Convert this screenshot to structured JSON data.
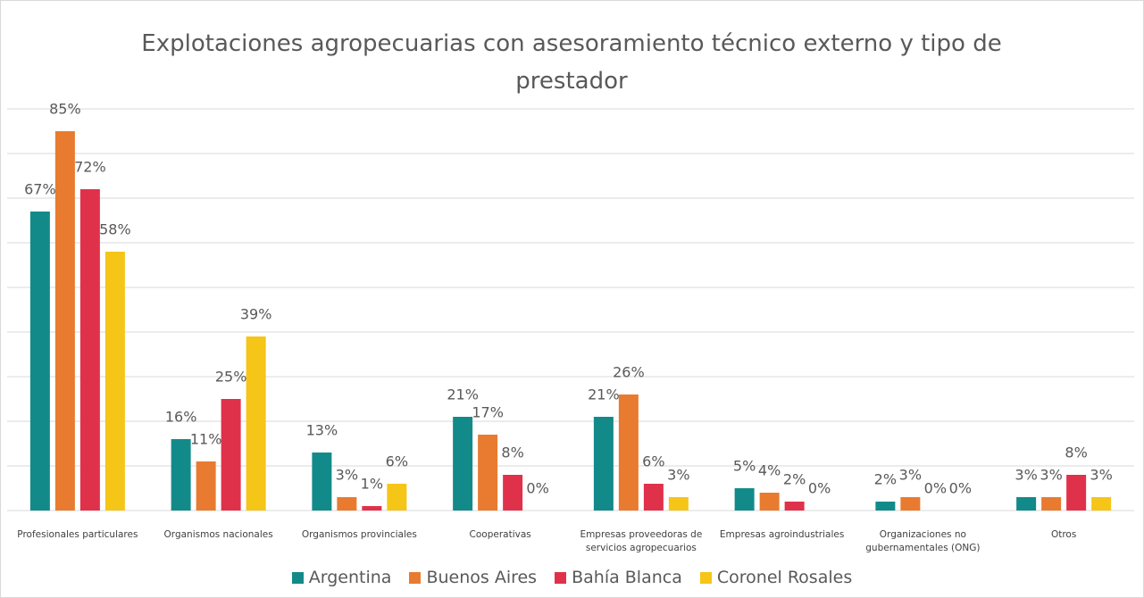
{
  "chart_data": {
    "type": "bar",
    "title": "Explotaciones agropecuarias con asesoramiento técnico externo y tipo de prestador",
    "categories": [
      "Profesionales particulares",
      "Organismos nacionales",
      "Organismos provinciales",
      "Cooperativas",
      "Empresas proveedoras de servicios agropecuarios",
      "Empresas agroindustriales",
      "Organizaciones no gubernamentales (ONG)",
      "Otros"
    ],
    "series": [
      {
        "name": "Argentina",
        "color": "#138a8a",
        "values": [
          67,
          16,
          13,
          21,
          21,
          5,
          2,
          3
        ],
        "value_labels": [
          "67%",
          "16%",
          "13%",
          "21%",
          "21%",
          "5%",
          "2%",
          "3%"
        ]
      },
      {
        "name": "Buenos Aires",
        "color": "#e87b2f",
        "values": [
          85,
          11,
          3,
          17,
          26,
          4,
          3,
          3
        ],
        "value_labels": [
          "85%",
          "11%",
          "3%",
          "17%",
          "26%",
          "4%",
          "3%",
          "3%"
        ]
      },
      {
        "name": "Bahía Blanca",
        "color": "#e0314b",
        "values": [
          72,
          25,
          1,
          8,
          6,
          2,
          0,
          8
        ],
        "value_labels": [
          "72%",
          "25%",
          "1%",
          "8%",
          "6%",
          "2%",
          "0%",
          "8%"
        ]
      },
      {
        "name": "Coronel Rosales",
        "color": "#f5c518",
        "values": [
          58,
          39,
          6,
          0,
          3,
          0,
          0,
          3
        ],
        "value_labels": [
          "58%",
          "39%",
          "6%",
          "0%",
          "3%",
          "0%",
          "0%",
          "3%"
        ]
      }
    ],
    "ylim": [
      0,
      90
    ],
    "yticks": [
      0,
      10,
      20,
      30,
      40,
      50,
      60,
      70,
      80,
      90
    ],
    "grid": true
  }
}
